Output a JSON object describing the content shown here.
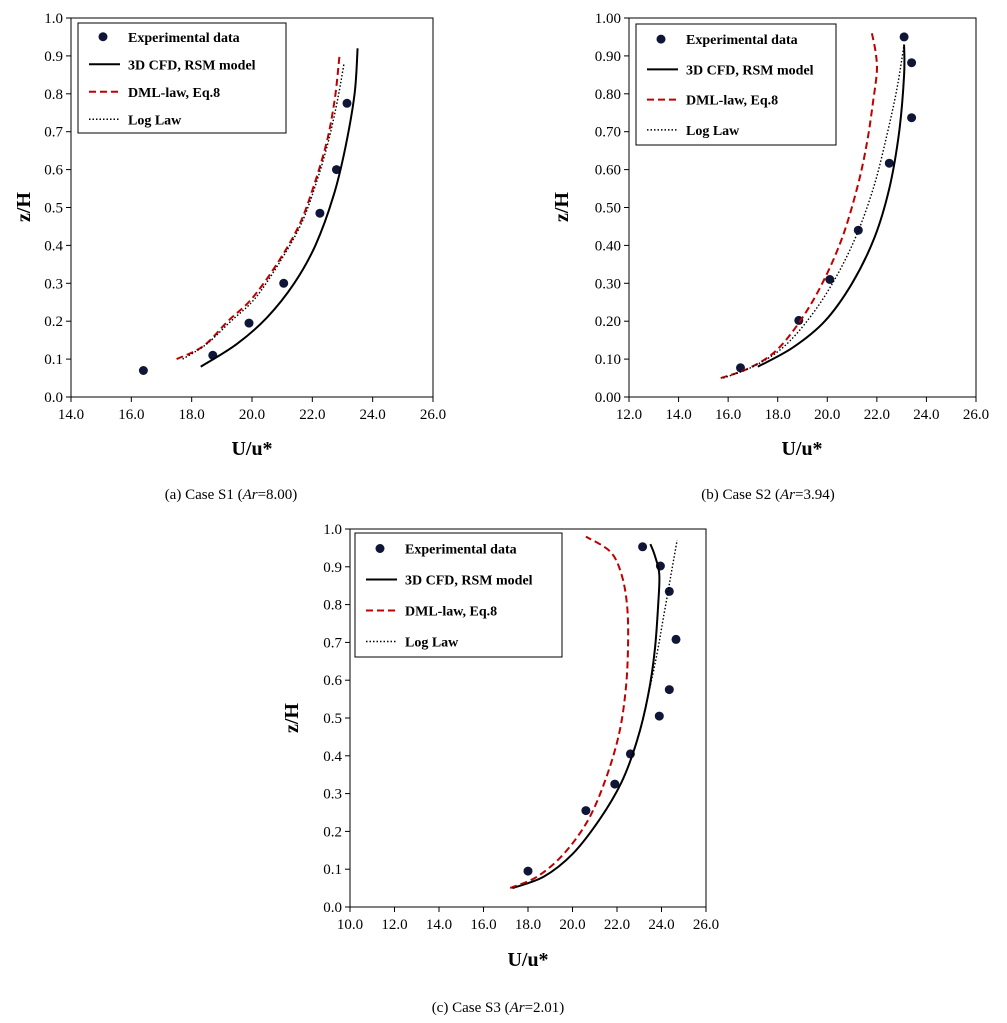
{
  "colors": {
    "points": "#0f1638",
    "cfd": "#000000",
    "dml": "#c00000",
    "log": "#000000"
  },
  "chart_data": [
    {
      "type": "scatter",
      "caption": {
        "prefix": "(a) Case S1 (",
        "ar": "Ar",
        "suffix": "=8.00)"
      },
      "xlabel": "U/u*",
      "ylabel": "z/H",
      "xlim": [
        14,
        26
      ],
      "ylim": [
        0,
        1
      ],
      "xticks": [
        "14.0",
        "16.0",
        "18.0",
        "20.0",
        "22.0",
        "24.0",
        "26.0"
      ],
      "yticks": [
        "0.0",
        "0.1",
        "0.2",
        "0.3",
        "0.4",
        "0.5",
        "0.6",
        "0.7",
        "0.8",
        "0.9",
        "1.0"
      ],
      "legend": [
        "Experimental data",
        "3D CFD, RSM model",
        "DML-law, Eq.8",
        "Log Law"
      ],
      "legend_position": "top-left",
      "series": [
        {
          "name": "Experimental data",
          "kind": "points",
          "x": [
            16.4,
            18.7,
            19.9,
            21.05,
            22.25,
            22.8,
            23.15
          ],
          "y": [
            0.07,
            0.11,
            0.195,
            0.3,
            0.485,
            0.6,
            0.775
          ]
        },
        {
          "name": "3D CFD, RSM model",
          "kind": "solid",
          "x": [
            18.3,
            19.5,
            20.5,
            21.4,
            22.1,
            22.7,
            23.1,
            23.4,
            23.5
          ],
          "y": [
            0.08,
            0.14,
            0.21,
            0.3,
            0.4,
            0.53,
            0.66,
            0.8,
            0.92
          ]
        },
        {
          "name": "DML-law, Eq.8",
          "kind": "dashed",
          "x": [
            17.5,
            18.4,
            19.2,
            20.0,
            20.9,
            21.6,
            22.1,
            22.5,
            22.75,
            22.9
          ],
          "y": [
            0.1,
            0.135,
            0.2,
            0.26,
            0.36,
            0.46,
            0.57,
            0.68,
            0.79,
            0.9
          ]
        },
        {
          "name": "Log Law",
          "kind": "dotted",
          "x": [
            17.7,
            18.5,
            19.3,
            20.1,
            20.95,
            21.65,
            22.15,
            22.55,
            22.85,
            23.05
          ],
          "y": [
            0.1,
            0.14,
            0.2,
            0.26,
            0.36,
            0.46,
            0.57,
            0.68,
            0.79,
            0.88
          ]
        }
      ]
    },
    {
      "type": "scatter",
      "caption": {
        "prefix": "(b) Case S2 (",
        "ar": "Ar",
        "suffix": "=3.94)"
      },
      "xlabel": "U/u*",
      "ylabel": "z/H",
      "xlim": [
        12,
        26
      ],
      "ylim": [
        0,
        1
      ],
      "xticks": [
        "12.0",
        "14.0",
        "16.0",
        "18.0",
        "20.0",
        "22.0",
        "24.0",
        "26.0"
      ],
      "yticks": [
        "0.00",
        "0.10",
        "0.20",
        "0.30",
        "0.40",
        "0.50",
        "0.60",
        "0.70",
        "0.80",
        "0.90",
        "1.00"
      ],
      "legend": [
        "Experimental data",
        "3D CFD, RSM model",
        "DML-law, Eq.8",
        "Log Law"
      ],
      "legend_position": "top-left",
      "series": [
        {
          "name": "Experimental data",
          "kind": "points",
          "x": [
            16.5,
            18.85,
            20.1,
            21.25,
            22.5,
            23.1,
            23.4,
            23.4
          ],
          "y": [
            0.077,
            0.202,
            0.31,
            0.44,
            0.617,
            0.95,
            0.882,
            0.737
          ]
        },
        {
          "name": "3D CFD, RSM model",
          "kind": "solid",
          "x": [
            17.2,
            18.6,
            19.9,
            21.0,
            21.9,
            22.5,
            22.9,
            23.1,
            23.1
          ],
          "y": [
            0.08,
            0.13,
            0.2,
            0.3,
            0.42,
            0.55,
            0.7,
            0.85,
            0.93
          ]
        },
        {
          "name": "DML-law, Eq.8",
          "kind": "dashed",
          "x": [
            15.7,
            16.8,
            17.9,
            18.9,
            19.8,
            20.6,
            21.2,
            21.6,
            21.85,
            22.0,
            21.95,
            21.8
          ],
          "y": [
            0.05,
            0.075,
            0.12,
            0.2,
            0.3,
            0.42,
            0.55,
            0.67,
            0.78,
            0.86,
            0.91,
            0.96
          ]
        },
        {
          "name": "Log Law",
          "kind": "dotted",
          "x": [
            15.8,
            17.0,
            18.2,
            19.3,
            20.3,
            21.2,
            21.9,
            22.4,
            22.8,
            23.1
          ],
          "y": [
            0.05,
            0.08,
            0.13,
            0.21,
            0.31,
            0.43,
            0.56,
            0.69,
            0.81,
            0.93
          ]
        }
      ]
    },
    {
      "type": "scatter",
      "caption": {
        "prefix": "(c) Case S3 (",
        "ar": "Ar",
        "suffix": "=2.01)"
      },
      "xlabel": "U/u*",
      "ylabel": "z/H",
      "xlim": [
        10,
        26
      ],
      "ylim": [
        0,
        1
      ],
      "xticks": [
        "10.0",
        "12.0",
        "14.0",
        "16.0",
        "18.0",
        "20.0",
        "22.0",
        "24.0",
        "26.0"
      ],
      "yticks": [
        "0.0",
        "0.1",
        "0.2",
        "0.3",
        "0.4",
        "0.5",
        "0.6",
        "0.7",
        "0.8",
        "0.9",
        "1.0"
      ],
      "legend": [
        "Experimental data",
        "3D CFD, RSM model",
        "DML-law, Eq.8",
        "Log Law"
      ],
      "legend_position": "top-left",
      "series": [
        {
          "name": "Experimental data",
          "kind": "points",
          "x": [
            18.0,
            20.6,
            21.9,
            22.6,
            23.15,
            23.95,
            24.35,
            24.65,
            23.9,
            24.35
          ],
          "y": [
            0.095,
            0.255,
            0.325,
            0.405,
            0.953,
            0.902,
            0.835,
            0.708,
            0.505,
            0.575
          ]
        },
        {
          "name": "3D CFD, RSM model",
          "kind": "solid",
          "x": [
            17.3,
            18.7,
            20.0,
            21.2,
            22.2,
            22.9,
            23.4,
            23.7,
            23.85,
            23.9,
            23.7,
            23.5
          ],
          "y": [
            0.05,
            0.08,
            0.14,
            0.23,
            0.33,
            0.44,
            0.56,
            0.68,
            0.8,
            0.88,
            0.93,
            0.96
          ]
        },
        {
          "name": "DML-law, Eq.8",
          "kind": "dashed",
          "x": [
            17.2,
            18.4,
            19.6,
            20.7,
            21.5,
            22.1,
            22.4,
            22.5,
            22.45,
            22.2,
            21.7,
            20.6
          ],
          "y": [
            0.05,
            0.08,
            0.14,
            0.23,
            0.34,
            0.46,
            0.58,
            0.7,
            0.8,
            0.88,
            0.94,
            0.98
          ]
        },
        {
          "name": "Log Law",
          "kind": "dotted",
          "x": [
            17.3,
            18.7,
            20.0,
            21.2,
            22.2,
            22.9,
            23.4,
            23.8,
            24.1,
            24.4,
            24.7
          ],
          "y": [
            0.05,
            0.08,
            0.14,
            0.23,
            0.33,
            0.44,
            0.56,
            0.67,
            0.77,
            0.87,
            0.97
          ]
        }
      ]
    }
  ]
}
